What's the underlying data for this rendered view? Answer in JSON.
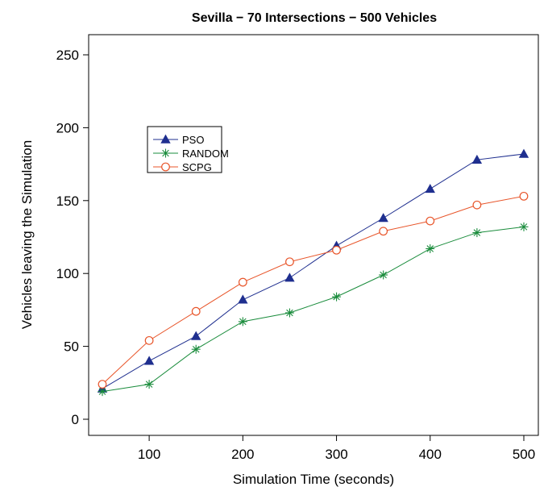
{
  "chart_data": {
    "type": "line",
    "title": "Sevilla − 70 Intersections − 500 Vehicles",
    "xlabel": "Simulation Time (seconds)",
    "ylabel": "Vehicles leaving the Simulation",
    "xlim": [
      50,
      500
    ],
    "ylim": [
      0,
      250
    ],
    "xticks": [
      100,
      200,
      300,
      400,
      500
    ],
    "yticks": [
      0,
      50,
      100,
      150,
      200,
      250
    ],
    "x": [
      50,
      100,
      150,
      200,
      250,
      300,
      350,
      400,
      450,
      500
    ],
    "legend_position": "upper-left",
    "grid": false,
    "series": [
      {
        "name": "PSO",
        "color": "#1f2f8f",
        "marker": "triangle",
        "values": [
          21,
          40,
          57,
          82,
          97,
          119,
          138,
          158,
          178,
          182
        ]
      },
      {
        "name": "RANDOM",
        "color": "#1a8c3c",
        "marker": "asterisk",
        "values": [
          19,
          24,
          48,
          67,
          73,
          84,
          99,
          117,
          128,
          132
        ]
      },
      {
        "name": "SCPG",
        "color": "#e8552a",
        "marker": "circle",
        "values": [
          24,
          54,
          74,
          94,
          108,
          116,
          129,
          136,
          147,
          153
        ]
      }
    ]
  }
}
